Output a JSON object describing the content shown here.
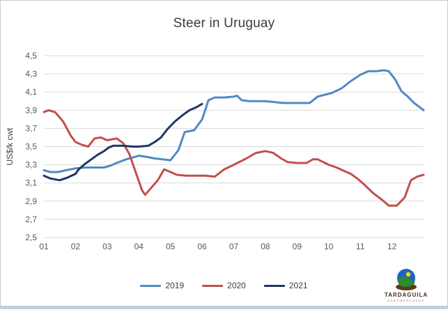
{
  "title": "Steer in Uruguay",
  "legend": {
    "item_2019": "2019",
    "item_2020": "2020",
    "item_2021": "2021"
  },
  "logo": {
    "name": "TARDAGUILA",
    "subtitle": "AGROMERCADOS"
  },
  "colors": {
    "series_2019": "#5089c6",
    "series_2020": "#c0504d",
    "series_2021": "#1f3864",
    "gridline": "#d9d9d9",
    "axis_text": "#595959",
    "title_text": "#3b3b3b"
  },
  "chart_data": {
    "type": "line",
    "title": "Steer in Uruguay",
    "xlabel": "",
    "ylabel": "US$/k cwt",
    "x_unit": "month of year (weekly data)",
    "xlim": [
      1,
      13
    ],
    "ylim": [
      2.5,
      4.5
    ],
    "grid": "horizontal",
    "legend_position": "bottom-center",
    "x_ticks": [
      {
        "v": 1,
        "label": "01"
      },
      {
        "v": 2,
        "label": "02"
      },
      {
        "v": 3,
        "label": "03"
      },
      {
        "v": 4,
        "label": "04"
      },
      {
        "v": 5,
        "label": "05"
      },
      {
        "v": 6,
        "label": "06"
      },
      {
        "v": 7,
        "label": "07"
      },
      {
        "v": 8,
        "label": "08"
      },
      {
        "v": 9,
        "label": "09"
      },
      {
        "v": 10,
        "label": "10"
      },
      {
        "v": 11,
        "label": "11"
      },
      {
        "v": 12,
        "label": "12"
      }
    ],
    "y_ticks": [
      {
        "v": 4.5,
        "label": "4,5"
      },
      {
        "v": 4.3,
        "label": "4,3"
      },
      {
        "v": 4.1,
        "label": "4,1"
      },
      {
        "v": 3.9,
        "label": "3,9"
      },
      {
        "v": 3.7,
        "label": "3,7"
      },
      {
        "v": 3.5,
        "label": "3,5"
      },
      {
        "v": 3.3,
        "label": "3,3"
      },
      {
        "v": 3.1,
        "label": "3,1"
      },
      {
        "v": 2.9,
        "label": "2,9"
      },
      {
        "v": 2.7,
        "label": "2,7"
      },
      {
        "v": 2.5,
        "label": "2,5"
      }
    ],
    "series": [
      {
        "name": "2019",
        "color": "#5089c6",
        "points": [
          [
            1.0,
            3.24
          ],
          [
            1.2,
            3.22
          ],
          [
            1.45,
            3.22
          ],
          [
            1.7,
            3.24
          ],
          [
            2.0,
            3.26
          ],
          [
            2.3,
            3.27
          ],
          [
            2.6,
            3.27
          ],
          [
            2.9,
            3.27
          ],
          [
            3.1,
            3.29
          ],
          [
            3.3,
            3.32
          ],
          [
            3.6,
            3.36
          ],
          [
            3.8,
            3.38
          ],
          [
            4.0,
            3.4
          ],
          [
            4.2,
            3.39
          ],
          [
            4.5,
            3.37
          ],
          [
            4.75,
            3.36
          ],
          [
            5.0,
            3.35
          ],
          [
            5.25,
            3.46
          ],
          [
            5.45,
            3.66
          ],
          [
            5.75,
            3.68
          ],
          [
            6.0,
            3.8
          ],
          [
            6.2,
            4.01
          ],
          [
            6.4,
            4.04
          ],
          [
            6.7,
            4.04
          ],
          [
            7.0,
            4.05
          ],
          [
            7.1,
            4.06
          ],
          [
            7.25,
            4.01
          ],
          [
            7.5,
            4.0
          ],
          [
            7.75,
            4.0
          ],
          [
            8.0,
            4.0
          ],
          [
            8.3,
            3.99
          ],
          [
            8.55,
            3.98
          ],
          [
            8.8,
            3.98
          ],
          [
            9.1,
            3.98
          ],
          [
            9.4,
            3.98
          ],
          [
            9.65,
            4.05
          ],
          [
            10.1,
            4.09
          ],
          [
            10.4,
            4.14
          ],
          [
            10.7,
            4.22
          ],
          [
            11.0,
            4.29
          ],
          [
            11.25,
            4.33
          ],
          [
            11.5,
            4.33
          ],
          [
            11.75,
            4.34
          ],
          [
            11.9,
            4.33
          ],
          [
            12.1,
            4.24
          ],
          [
            12.3,
            4.11
          ],
          [
            12.5,
            4.05
          ],
          [
            12.7,
            3.98
          ],
          [
            12.85,
            3.94
          ],
          [
            13.0,
            3.9
          ]
        ]
      },
      {
        "name": "2020",
        "color": "#c0504d",
        "points": [
          [
            1.0,
            3.88
          ],
          [
            1.15,
            3.9
          ],
          [
            1.35,
            3.88
          ],
          [
            1.6,
            3.78
          ],
          [
            1.85,
            3.62
          ],
          [
            2.0,
            3.55
          ],
          [
            2.2,
            3.52
          ],
          [
            2.4,
            3.5
          ],
          [
            2.6,
            3.59
          ],
          [
            2.8,
            3.6
          ],
          [
            3.0,
            3.57
          ],
          [
            3.3,
            3.59
          ],
          [
            3.5,
            3.54
          ],
          [
            3.7,
            3.42
          ],
          [
            3.9,
            3.22
          ],
          [
            4.1,
            3.02
          ],
          [
            4.2,
            2.97
          ],
          [
            4.4,
            3.05
          ],
          [
            4.6,
            3.13
          ],
          [
            4.8,
            3.25
          ],
          [
            5.0,
            3.22
          ],
          [
            5.2,
            3.19
          ],
          [
            5.5,
            3.18
          ],
          [
            5.8,
            3.18
          ],
          [
            6.1,
            3.18
          ],
          [
            6.4,
            3.17
          ],
          [
            6.7,
            3.25
          ],
          [
            7.0,
            3.3
          ],
          [
            7.4,
            3.37
          ],
          [
            7.7,
            3.43
          ],
          [
            8.0,
            3.45
          ],
          [
            8.25,
            3.43
          ],
          [
            8.5,
            3.37
          ],
          [
            8.7,
            3.33
          ],
          [
            9.0,
            3.32
          ],
          [
            9.3,
            3.32
          ],
          [
            9.5,
            3.36
          ],
          [
            9.65,
            3.36
          ],
          [
            10.0,
            3.3
          ],
          [
            10.25,
            3.27
          ],
          [
            10.5,
            3.23
          ],
          [
            10.7,
            3.2
          ],
          [
            10.9,
            3.15
          ],
          [
            11.1,
            3.09
          ],
          [
            11.4,
            2.99
          ],
          [
            11.7,
            2.91
          ],
          [
            11.9,
            2.85
          ],
          [
            12.15,
            2.85
          ],
          [
            12.4,
            2.94
          ],
          [
            12.6,
            3.13
          ],
          [
            12.8,
            3.17
          ],
          [
            13.0,
            3.19
          ]
        ]
      },
      {
        "name": "2021",
        "color": "#1f3864",
        "points": [
          [
            1.0,
            3.18
          ],
          [
            1.2,
            3.15
          ],
          [
            1.5,
            3.13
          ],
          [
            1.75,
            3.16
          ],
          [
            2.0,
            3.2
          ],
          [
            2.1,
            3.25
          ],
          [
            2.3,
            3.31
          ],
          [
            2.5,
            3.36
          ],
          [
            2.7,
            3.41
          ],
          [
            2.9,
            3.45
          ],
          [
            3.05,
            3.49
          ],
          [
            3.2,
            3.51
          ],
          [
            3.5,
            3.51
          ],
          [
            3.8,
            3.5
          ],
          [
            4.0,
            3.5
          ],
          [
            4.3,
            3.51
          ],
          [
            4.5,
            3.55
          ],
          [
            4.7,
            3.6
          ],
          [
            4.9,
            3.69
          ],
          [
            5.15,
            3.78
          ],
          [
            5.4,
            3.85
          ],
          [
            5.6,
            3.9
          ],
          [
            5.8,
            3.93
          ],
          [
            6.0,
            3.97
          ]
        ]
      }
    ]
  }
}
